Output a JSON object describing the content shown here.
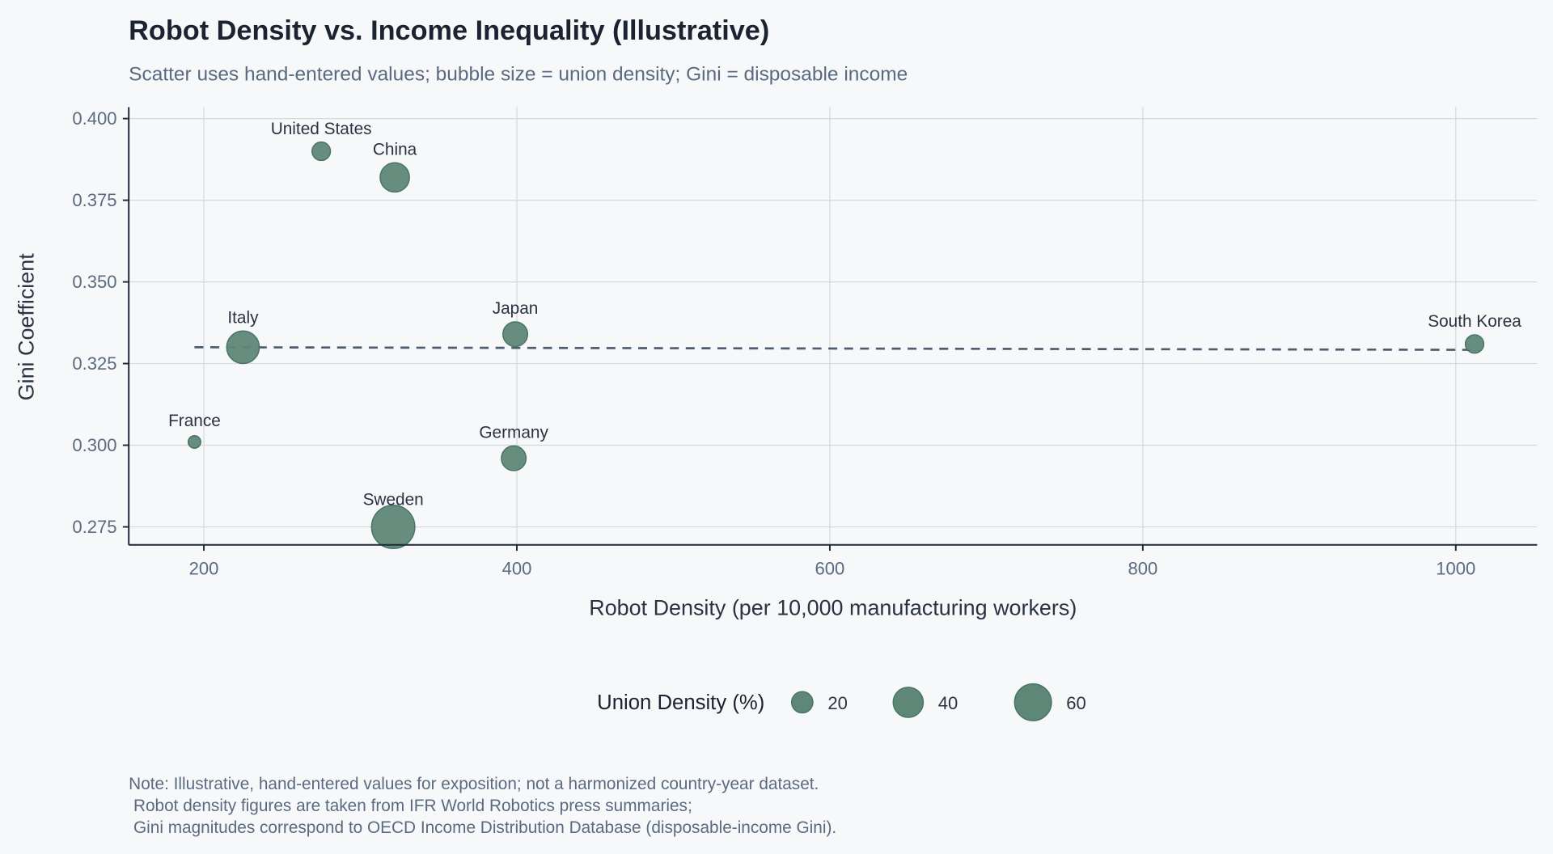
{
  "chart_data": {
    "type": "scatter",
    "title": "Robot Density vs. Income Inequality (Illustrative)",
    "subtitle": "Scatter uses hand-entered values; bubble size = union density; Gini = disposable income",
    "xlabel": "Robot Density (per 10,000 manufacturing workers)",
    "ylabel": "Gini Coefficient",
    "xlim": [
      152,
      1052
    ],
    "ylim": [
      0.2695,
      0.4035
    ],
    "x_ticks": [
      200,
      400,
      600,
      800,
      1000
    ],
    "x_tick_labels": [
      "200",
      "400",
      "600",
      "800",
      "1000"
    ],
    "y_ticks": [
      0.275,
      0.3,
      0.325,
      0.35,
      0.375,
      0.4
    ],
    "y_tick_labels": [
      "0.275",
      "0.300",
      "0.325",
      "0.350",
      "0.375",
      "0.400"
    ],
    "grid": true,
    "marker_color": "#5e8777",
    "marker_edge_color": "#4a7463",
    "trend_color": "#4f5b70",
    "points": [
      {
        "label": "United States",
        "x": 275,
        "y": 0.39,
        "union_density": 15
      },
      {
        "label": "China",
        "x": 322,
        "y": 0.382,
        "union_density": 38
      },
      {
        "label": "Italy",
        "x": 225,
        "y": 0.33,
        "union_density": 47
      },
      {
        "label": "Japan",
        "x": 399,
        "y": 0.334,
        "union_density": 27
      },
      {
        "label": "South Korea",
        "x": 1012,
        "y": 0.331,
        "union_density": 15
      },
      {
        "label": "France",
        "x": 194,
        "y": 0.301,
        "union_density": 7
      },
      {
        "label": "Germany",
        "x": 398,
        "y": 0.296,
        "union_density": 27
      },
      {
        "label": "Sweden",
        "x": 321,
        "y": 0.275,
        "union_density": 83
      }
    ],
    "trend_line": {
      "style": "dashed",
      "x": [
        194,
        1012
      ],
      "y": [
        0.33,
        0.3292
      ]
    },
    "legend": {
      "title": "Union Density (%)",
      "placement": "bottom-center",
      "sizes": [
        20,
        40,
        60
      ],
      "labels": [
        "20",
        "40",
        "60"
      ]
    }
  },
  "note": {
    "lines": [
      "Note: Illustrative, hand-entered values for exposition; not a harmonized country-year dataset.",
      " Robot density figures are taken from IFR World Robotics press summaries;",
      " Gini magnitudes correspond to OECD Income Distribution Database (disposable-income Gini)."
    ]
  }
}
